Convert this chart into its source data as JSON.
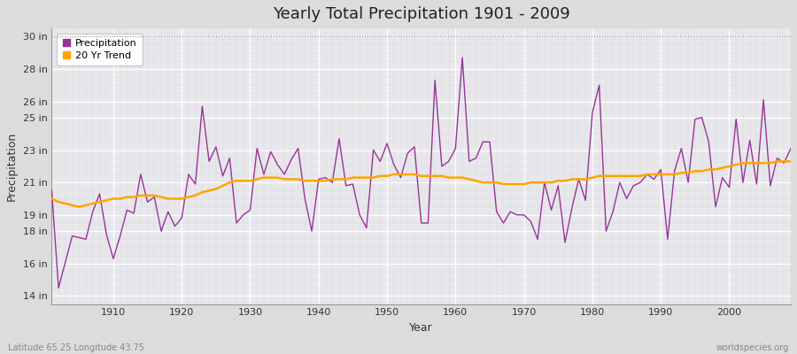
{
  "title": "Yearly Total Precipitation 1901 - 2009",
  "xlabel": "Year",
  "ylabel": "Precipitation",
  "subtitle_left": "Latitude 65.25 Longitude 43.75",
  "subtitle_right": "worldspecies.org",
  "years": [
    1901,
    1902,
    1903,
    1904,
    1905,
    1906,
    1907,
    1908,
    1909,
    1910,
    1911,
    1912,
    1913,
    1914,
    1915,
    1916,
    1917,
    1918,
    1919,
    1920,
    1921,
    1922,
    1923,
    1924,
    1925,
    1926,
    1927,
    1928,
    1929,
    1930,
    1931,
    1932,
    1933,
    1934,
    1935,
    1936,
    1937,
    1938,
    1939,
    1940,
    1941,
    1942,
    1943,
    1944,
    1945,
    1946,
    1947,
    1948,
    1949,
    1950,
    1951,
    1952,
    1953,
    1954,
    1955,
    1956,
    1957,
    1958,
    1959,
    1960,
    1961,
    1962,
    1963,
    1964,
    1965,
    1966,
    1967,
    1968,
    1969,
    1970,
    1971,
    1972,
    1973,
    1974,
    1975,
    1976,
    1977,
    1978,
    1979,
    1980,
    1981,
    1982,
    1983,
    1984,
    1985,
    1986,
    1987,
    1988,
    1989,
    1990,
    1991,
    1992,
    1993,
    1994,
    1995,
    1996,
    1997,
    1998,
    1999,
    2000,
    2001,
    2002,
    2003,
    2004,
    2005,
    2006,
    2007,
    2008,
    2009
  ],
  "precip": [
    20.5,
    14.5,
    16.1,
    17.7,
    17.6,
    17.5,
    19.2,
    20.3,
    17.8,
    16.3,
    17.7,
    19.3,
    19.1,
    21.5,
    19.8,
    20.1,
    18.0,
    19.2,
    18.3,
    18.8,
    21.5,
    20.9,
    25.7,
    22.3,
    23.2,
    21.4,
    22.5,
    18.5,
    19.0,
    19.3,
    23.1,
    21.5,
    22.9,
    22.1,
    21.5,
    22.4,
    23.1,
    20.0,
    18.0,
    21.2,
    21.3,
    21.0,
    23.7,
    20.8,
    20.9,
    19.0,
    18.2,
    23.0,
    22.3,
    23.4,
    22.1,
    21.3,
    22.8,
    23.2,
    18.5,
    18.5,
    27.3,
    22.0,
    22.3,
    23.1,
    28.7,
    22.3,
    22.5,
    23.5,
    23.5,
    19.2,
    18.5,
    19.2,
    19.0,
    19.0,
    18.6,
    17.5,
    21.0,
    19.3,
    20.8,
    17.3,
    19.4,
    21.2,
    19.9,
    25.3,
    27.0,
    18.0,
    19.2,
    21.0,
    20.0,
    20.8,
    21.0,
    21.5,
    21.2,
    21.8,
    17.5,
    21.7,
    23.1,
    21.0,
    24.9,
    25.0,
    23.5,
    19.5,
    21.3,
    20.7,
    24.9,
    21.0,
    23.6,
    20.9,
    26.1,
    20.8,
    22.5,
    22.2,
    23.1
  ],
  "trend": [
    20.0,
    19.8,
    19.7,
    19.6,
    19.5,
    19.6,
    19.7,
    19.8,
    19.9,
    20.0,
    20.0,
    20.1,
    20.1,
    20.2,
    20.2,
    20.2,
    20.1,
    20.0,
    20.0,
    20.0,
    20.1,
    20.2,
    20.4,
    20.5,
    20.6,
    20.8,
    21.0,
    21.1,
    21.1,
    21.1,
    21.2,
    21.3,
    21.3,
    21.3,
    21.2,
    21.2,
    21.2,
    21.1,
    21.1,
    21.1,
    21.1,
    21.2,
    21.2,
    21.2,
    21.3,
    21.3,
    21.3,
    21.3,
    21.4,
    21.4,
    21.5,
    21.5,
    21.5,
    21.5,
    21.4,
    21.4,
    21.4,
    21.4,
    21.3,
    21.3,
    21.3,
    21.2,
    21.1,
    21.0,
    21.0,
    21.0,
    20.9,
    20.9,
    20.9,
    20.9,
    21.0,
    21.0,
    21.0,
    21.0,
    21.1,
    21.1,
    21.2,
    21.2,
    21.2,
    21.3,
    21.4,
    21.4,
    21.4,
    21.4,
    21.4,
    21.4,
    21.4,
    21.5,
    21.5,
    21.5,
    21.5,
    21.5,
    21.6,
    21.6,
    21.7,
    21.7,
    21.8,
    21.8,
    21.9,
    22.0,
    22.1,
    22.2,
    22.2,
    22.2,
    22.2,
    22.2,
    22.3,
    22.3,
    22.3
  ],
  "precip_color": "#993399",
  "trend_color": "#FFA500",
  "fig_bg_color": "#DCDCDC",
  "plot_bg_color": "#E8E8EC",
  "grid_color": "#FFFFFF",
  "grid_minor_color": "#D8D8D8",
  "ylim": [
    13.5,
    30.5
  ],
  "ytick_vals": [
    14,
    16,
    18,
    19,
    21,
    23,
    25,
    26,
    28,
    30
  ],
  "ytick_labels": [
    "14 in",
    "16 in",
    "18 in",
    "19 in",
    "21 in",
    "23 in",
    "25 in",
    "26 in",
    "28 in",
    "30 in"
  ],
  "xticks": [
    1910,
    1920,
    1930,
    1940,
    1950,
    1960,
    1970,
    1980,
    1990,
    2000
  ],
  "top_line_y": 30,
  "xlim": [
    1901,
    2009
  ]
}
